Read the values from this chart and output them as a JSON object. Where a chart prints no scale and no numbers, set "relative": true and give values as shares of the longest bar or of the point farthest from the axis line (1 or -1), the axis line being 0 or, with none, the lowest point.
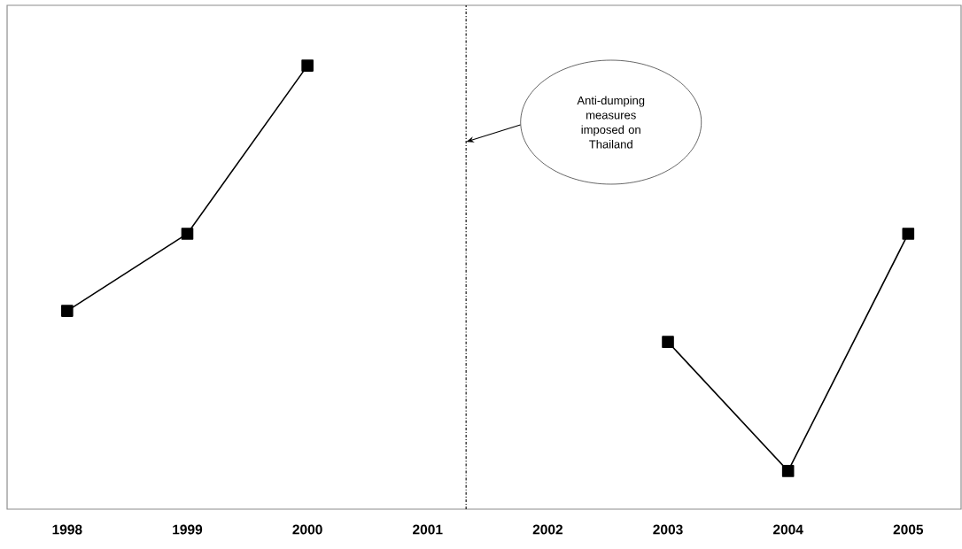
{
  "chart_data": {
    "type": "line",
    "relative": true,
    "x": [
      1998,
      1999,
      2000,
      2001,
      2002,
      2003,
      2004,
      2005
    ],
    "xlim": [
      1997.5,
      2005.44
    ],
    "xticks": [
      1998,
      1999,
      2000,
      2001,
      2002,
      2003,
      2004,
      2005
    ],
    "series": [
      {
        "color": "#000000",
        "values": [
          0.447,
          0.621,
          1,
          null,
          null,
          0.377,
          0.086,
          0.621
        ]
      }
    ],
    "marker": "square",
    "line_style": "solid",
    "grid": false,
    "ref_lines": [
      {
        "axis": "x",
        "value": 2001.32,
        "label": "Anti-dumping measures imposed on Thailand",
        "color": "#000000",
        "line_style": "dashdot"
      }
    ]
  }
}
